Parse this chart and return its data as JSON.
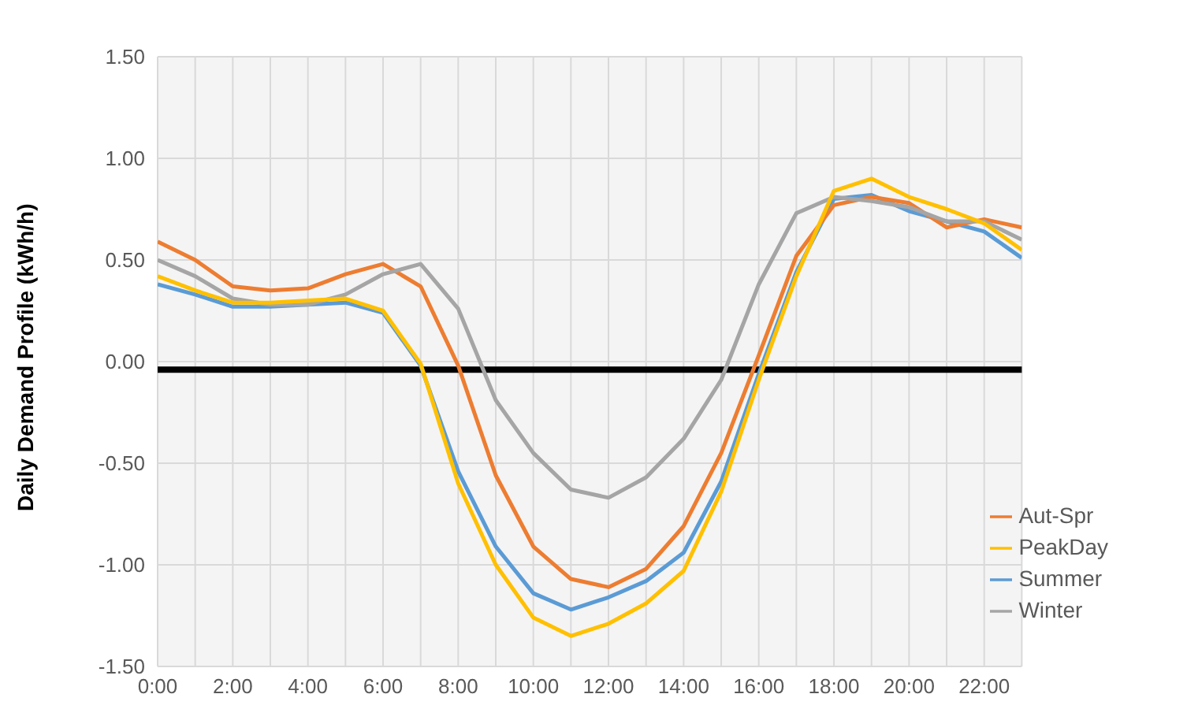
{
  "chart_data": {
    "type": "line",
    "ylabel": "Daily Demand Profile (kWh/h)",
    "x": [
      0,
      1,
      2,
      3,
      4,
      5,
      6,
      7,
      8,
      9,
      10,
      11,
      12,
      13,
      14,
      15,
      16,
      17,
      18,
      19,
      20,
      21,
      22,
      23
    ],
    "xlim": [
      0,
      23
    ],
    "xticks": [
      {
        "value": 0,
        "label": "0:00"
      },
      {
        "value": 1,
        "label": null
      },
      {
        "value": 2,
        "label": "2:00"
      },
      {
        "value": 3,
        "label": null
      },
      {
        "value": 4,
        "label": "4:00"
      },
      {
        "value": 5,
        "label": null
      },
      {
        "value": 6,
        "label": "6:00"
      },
      {
        "value": 7,
        "label": null
      },
      {
        "value": 8,
        "label": "8:00"
      },
      {
        "value": 9,
        "label": null
      },
      {
        "value": 10,
        "label": "10:00"
      },
      {
        "value": 11,
        "label": null
      },
      {
        "value": 12,
        "label": "12:00"
      },
      {
        "value": 13,
        "label": null
      },
      {
        "value": 14,
        "label": "14:00"
      },
      {
        "value": 15,
        "label": null
      },
      {
        "value": 16,
        "label": "16:00"
      },
      {
        "value": 17,
        "label": null
      },
      {
        "value": 18,
        "label": "18:00"
      },
      {
        "value": 19,
        "label": null
      },
      {
        "value": 20,
        "label": "20:00"
      },
      {
        "value": 21,
        "label": null
      },
      {
        "value": 22,
        "label": "22:00"
      },
      {
        "value": 23,
        "label": null
      }
    ],
    "ylim": [
      -1.5,
      1.5
    ],
    "yticks": [
      {
        "value": -1.5,
        "label": "-1.50"
      },
      {
        "value": -1,
        "label": "-1.00"
      },
      {
        "value": -0.5,
        "label": "-0.50"
      },
      {
        "value": 0,
        "label": "0.00"
      },
      {
        "value": 0.5,
        "label": "0.50"
      },
      {
        "value": 1,
        "label": "1.00"
      },
      {
        "value": 1.5,
        "label": "1.50"
      }
    ],
    "series": [
      {
        "name": "Summer",
        "color": "#5b9bd5",
        "values": [
          0.38,
          0.33,
          0.27,
          0.27,
          0.28,
          0.29,
          0.24,
          -0.02,
          -0.54,
          -0.91,
          -1.14,
          -1.22,
          -1.16,
          -1.08,
          -0.94,
          -0.59,
          -0.06,
          0.44,
          0.8,
          0.82,
          0.74,
          0.69,
          0.64,
          0.51
        ]
      },
      {
        "name": "Aut-Spr",
        "color": "#ed7d31",
        "values": [
          0.59,
          0.5,
          0.37,
          0.35,
          0.36,
          0.43,
          0.48,
          0.37,
          -0.02,
          -0.56,
          -0.91,
          -1.07,
          -1.11,
          -1.02,
          -0.81,
          -0.45,
          0.03,
          0.52,
          0.77,
          0.81,
          0.78,
          0.66,
          0.7,
          0.66
        ]
      },
      {
        "name": "Winter",
        "color": "#a5a5a5",
        "values": [
          0.5,
          0.42,
          0.31,
          0.28,
          0.28,
          0.33,
          0.43,
          0.48,
          0.26,
          -0.19,
          -0.45,
          -0.63,
          -0.67,
          -0.57,
          -0.38,
          -0.09,
          0.38,
          0.73,
          0.81,
          0.79,
          0.76,
          0.69,
          0.69,
          0.6
        ]
      },
      {
        "name": "PeakDay",
        "color": "#ffc000",
        "values": [
          0.42,
          0.35,
          0.29,
          0.29,
          0.3,
          0.31,
          0.25,
          -0.01,
          -0.6,
          -1.0,
          -1.26,
          -1.35,
          -1.29,
          -1.19,
          -1.03,
          -0.64,
          -0.09,
          0.42,
          0.84,
          0.9,
          0.81,
          0.75,
          0.68,
          0.55
        ]
      }
    ],
    "ref_lines": [
      {
        "axis": "y",
        "value": -0.04,
        "color": "#000000"
      }
    ],
    "grid": true,
    "legend": "bottom right",
    "marker": "none",
    "line_style": "solid"
  }
}
